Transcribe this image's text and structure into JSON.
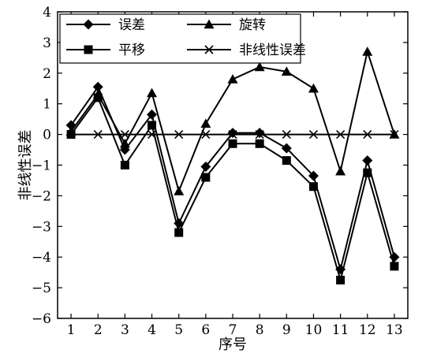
{
  "chart_data": {
    "type": "line",
    "xlabel": "序号",
    "ylabel": "非线性误差",
    "x": [
      1,
      2,
      3,
      4,
      5,
      6,
      7,
      8,
      9,
      10,
      11,
      12,
      13
    ],
    "xlim": [
      0.5,
      13.5
    ],
    "ylim": [
      -6,
      4
    ],
    "yticks": [
      -6,
      -5,
      -4,
      -3,
      -2,
      -1,
      0,
      1,
      2,
      3,
      4
    ],
    "grid": false,
    "legend_position": "top-left",
    "series": [
      {
        "name": "误差",
        "marker": "diamond",
        "values": [
          0.3,
          1.55,
          -0.5,
          0.65,
          -2.9,
          -1.05,
          0.05,
          0.05,
          -0.45,
          -1.35,
          -4.4,
          -0.85,
          -4.0
        ]
      },
      {
        "name": "旋转",
        "marker": "triangle",
        "values": [
          0.1,
          1.3,
          -0.3,
          1.35,
          -1.85,
          0.35,
          1.8,
          2.2,
          2.05,
          1.5,
          -1.2,
          2.7,
          0.0
        ]
      },
      {
        "name": "平移",
        "marker": "square",
        "values": [
          0.0,
          1.2,
          -1.0,
          0.3,
          -3.2,
          -1.4,
          -0.3,
          -0.3,
          -0.85,
          -1.7,
          -4.75,
          -1.25,
          -4.3
        ]
      },
      {
        "name": "非线性误差",
        "marker": "x",
        "values": [
          0,
          0,
          0,
          0,
          0,
          0,
          0,
          0,
          0,
          0,
          0,
          0,
          0
        ]
      }
    ]
  }
}
